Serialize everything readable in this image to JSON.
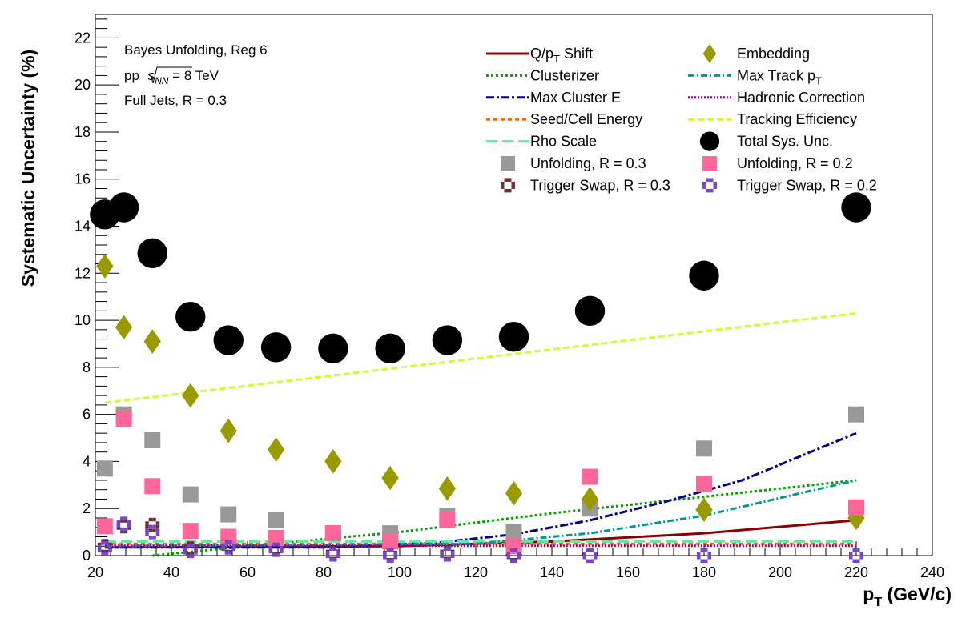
{
  "chart_data": {
    "type": "scatter",
    "xlabel": "p",
    "xlabel_sub": "T",
    "xlabel_units": " (GeV/c)",
    "ylabel": "Systematic Uncertainty (%)",
    "xlim": [
      20,
      240
    ],
    "ylim": [
      0,
      23
    ],
    "x_ticks": [
      20,
      40,
      60,
      80,
      100,
      120,
      140,
      160,
      180,
      200,
      220,
      240
    ],
    "y_ticks": [
      0,
      2,
      4,
      6,
      8,
      10,
      12,
      14,
      16,
      18,
      20,
      22
    ],
    "annotation": {
      "line1": "Bayes Unfolding, Reg 6",
      "line2_prefix": "pp ",
      "line2_s": "s",
      "line2_sub": "NN",
      "line2_suffix": " = 8 TeV",
      "line3": "Full Jets, R = 0.3"
    },
    "legend_position": "top-right",
    "x_points": [
      22.5,
      27.5,
      35,
      45,
      55,
      67.5,
      82.5,
      97.5,
      112.5,
      130,
      150,
      180,
      220
    ],
    "series": [
      {
        "name": "Q/p",
        "name_sub": "T",
        "name_suffix": " Shift",
        "kind": "line",
        "color": "#8b0000",
        "dash": "",
        "width": 3,
        "x": [
          22.5,
          100,
          140,
          180,
          220
        ],
        "y": [
          0.35,
          0.4,
          0.6,
          0.95,
          1.5
        ]
      },
      {
        "name": "Clusterizer",
        "kind": "line",
        "color": "#00a000",
        "dash": "3,3",
        "width": 3,
        "x": [
          35,
          60,
          100,
          140,
          180,
          220
        ],
        "y": [
          0.0,
          0.4,
          1.0,
          1.8,
          2.5,
          3.2
        ]
      },
      {
        "name": "Max Cluster E",
        "kind": "line",
        "color": "#000080",
        "dash": "10,3,3,3",
        "width": 3,
        "x": [
          22.5,
          80,
          110,
          130,
          150,
          170,
          190,
          220
        ],
        "y": [
          0.35,
          0.35,
          0.55,
          0.9,
          1.5,
          2.3,
          3.2,
          5.2
        ]
      },
      {
        "name": "Seed/Cell Energy",
        "kind": "line",
        "color": "#ff6600",
        "dash": "5,4",
        "width": 3,
        "x": [
          22.5,
          220
        ],
        "y": [
          0.5,
          0.5
        ]
      },
      {
        "name": "Rho Scale",
        "kind": "line",
        "color": "#33ffaa",
        "dash": "14,6",
        "width": 3,
        "x": [
          22.5,
          220
        ],
        "y": [
          0.6,
          0.6
        ]
      },
      {
        "name": "Unfolding, R = 0.3",
        "kind": "marker",
        "marker": "square",
        "color": "#999999",
        "x": [
          22.5,
          27.5,
          35,
          45,
          55,
          67.5,
          82.5,
          97.5,
          112.5,
          130,
          150,
          180,
          220
        ],
        "y": [
          3.7,
          6.0,
          4.9,
          2.6,
          1.75,
          1.5,
          0.95,
          0.95,
          1.7,
          1.0,
          2.0,
          4.55,
          6.0
        ]
      },
      {
        "name": "Trigger Swap, R = 0.3",
        "kind": "marker",
        "marker": "cross",
        "color": "#6b3030",
        "x": [
          22.5,
          27.5,
          35,
          45,
          55,
          67.5,
          82.5,
          97.5,
          112.5,
          130,
          150,
          180,
          220
        ],
        "y": [
          0.4,
          1.25,
          1.3,
          0.3,
          0.4,
          0.3,
          0.1,
          0.05,
          0.1,
          0.05,
          0.0,
          0.0,
          0.0
        ]
      },
      {
        "name": "Embedding",
        "kind": "marker",
        "marker": "diamond",
        "color": "#999900",
        "x": [
          22.5,
          27.5,
          35,
          45,
          55,
          67.5,
          82.5,
          97.5,
          112.5,
          130,
          150,
          180,
          220
        ],
        "y": [
          12.3,
          9.7,
          9.1,
          6.8,
          5.3,
          4.5,
          4.0,
          3.3,
          2.85,
          2.65,
          2.4,
          1.95,
          1.6
        ]
      },
      {
        "name": "Max Track p",
        "name_sub": "T",
        "kind": "line",
        "color": "#009999",
        "dash": "8,3,2,3",
        "width": 3,
        "x": [
          22.5,
          120,
          150,
          180,
          220
        ],
        "y": [
          0.4,
          0.5,
          0.95,
          1.7,
          3.2
        ]
      },
      {
        "name": "Hadronic Correction",
        "kind": "line",
        "color": "#990099",
        "dash": "2,2",
        "width": 3,
        "x": [
          22.5,
          220
        ],
        "y": [
          0.42,
          0.42
        ]
      },
      {
        "name": "Tracking Efficiency",
        "kind": "line",
        "color": "#ccff33",
        "dash": "8,4",
        "width": 3,
        "x": [
          22.5,
          220
        ],
        "y": [
          6.5,
          10.3
        ]
      },
      {
        "name": "Total Sys. Unc.",
        "kind": "marker",
        "marker": "circle",
        "color": "#000000",
        "x": [
          22.5,
          27.5,
          35,
          45,
          55,
          67.5,
          82.5,
          97.5,
          112.5,
          130,
          150,
          180,
          220
        ],
        "y": [
          14.5,
          14.8,
          12.85,
          10.15,
          9.15,
          8.85,
          8.8,
          8.8,
          9.15,
          9.3,
          10.4,
          11.9,
          14.8
        ]
      },
      {
        "name": "Unfolding, R = 0.2",
        "kind": "marker",
        "marker": "square",
        "color": "#ff6699",
        "x": [
          22.5,
          27.5,
          35,
          45,
          55,
          67.5,
          82.5,
          97.5,
          112.5,
          130,
          150,
          180,
          220
        ],
        "y": [
          1.25,
          5.8,
          2.95,
          1.05,
          0.8,
          0.75,
          0.95,
          0.6,
          1.5,
          0.4,
          3.35,
          3.05,
          2.05
        ]
      },
      {
        "name": "Trigger Swap, R = 0.2",
        "kind": "marker",
        "marker": "cross",
        "color": "#7744cc",
        "x": [
          22.5,
          27.5,
          35,
          45,
          55,
          67.5,
          82.5,
          97.5,
          112.5,
          130,
          150,
          180,
          220
        ],
        "y": [
          0.3,
          1.35,
          1.0,
          0.2,
          0.35,
          0.25,
          0.05,
          0.0,
          0.05,
          0.0,
          0.0,
          0.0,
          0.0
        ]
      }
    ],
    "legend_order": [
      [
        "Q/p",
        "Embedding"
      ],
      [
        "Clusterizer",
        "Max Track p"
      ],
      [
        "Max Cluster E",
        "Hadronic Correction"
      ],
      [
        "Seed/Cell Energy",
        "Tracking Efficiency"
      ],
      [
        "Rho Scale",
        "Total Sys. Unc."
      ],
      [
        "Unfolding, R = 0.3",
        "Unfolding, R = 0.2"
      ],
      [
        "Trigger Swap, R = 0.3",
        "Trigger Swap, R = 0.2"
      ]
    ]
  }
}
